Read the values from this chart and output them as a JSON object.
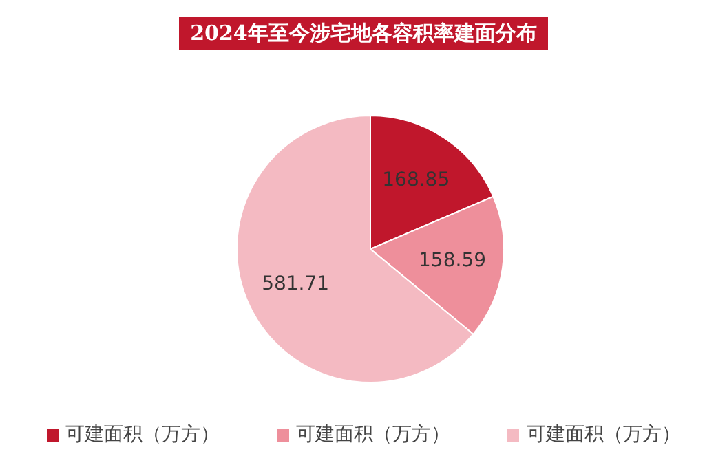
{
  "chart_data": {
    "type": "pie",
    "title": "2024年至今涉宅地各容积率建面分布",
    "categories": [
      "可建面积（万方）",
      "可建面积（万方）",
      "可建面积（万方）"
    ],
    "values": [
      168.85,
      158.59,
      581.71
    ],
    "colors": [
      "#c0172c",
      "#ee8f9b",
      "#f4bac2"
    ],
    "data_labels": true,
    "legend": "bottom"
  }
}
